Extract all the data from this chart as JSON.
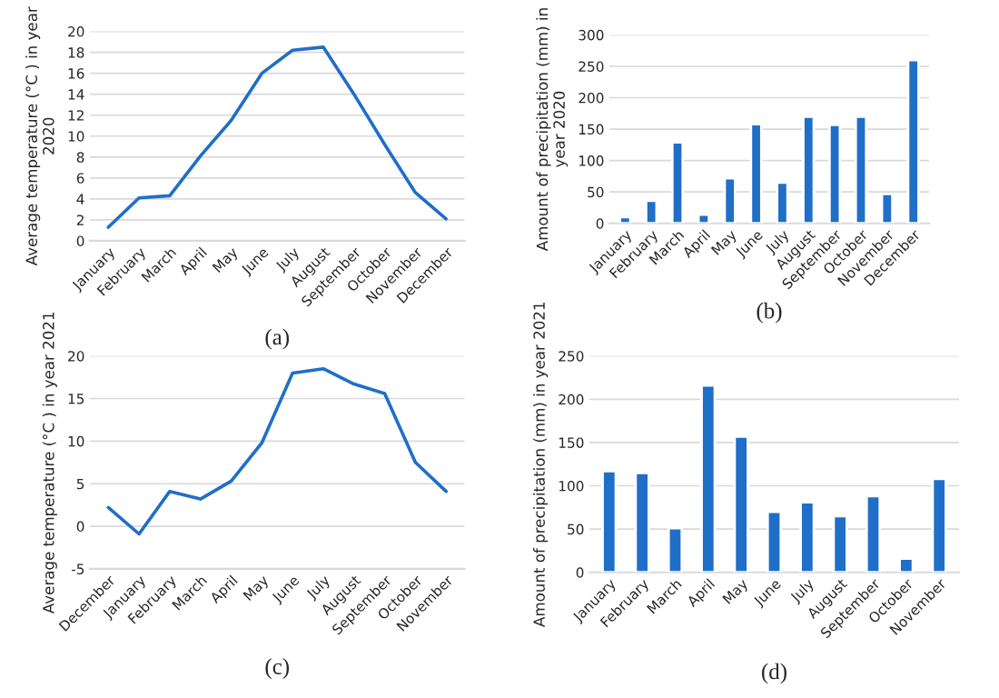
{
  "chart_data": [
    {
      "type": "line",
      "ylabel": "Average temperature (°C ) in year 2020",
      "categories": [
        "January",
        "February",
        "March",
        "April",
        "May",
        "June",
        "July",
        "August",
        "September",
        "October",
        "November",
        "December"
      ],
      "series": [
        {
          "color": "#1f6fc8",
          "values": [
            1.3,
            4.1,
            4.3,
            8.1,
            11.5,
            16.0,
            18.2,
            18.5,
            14.0,
            9.2,
            4.6,
            2.1
          ]
        }
      ],
      "ylim": [
        0,
        20
      ],
      "yticks": [
        0,
        2,
        4,
        6,
        8,
        10,
        12,
        14,
        16,
        18,
        20
      ],
      "grid": "y",
      "legend": false,
      "marker": "none",
      "line_style": "solid",
      "annotations": [
        "(a)"
      ]
    },
    {
      "type": "bar",
      "ylabel": "Amount of precipitation (mm) in year 2020",
      "categories": [
        "January",
        "February",
        "March",
        "April",
        "May",
        "June",
        "July",
        "August",
        "September",
        "October",
        "November",
        "December"
      ],
      "series": [
        {
          "color": "#1f6fc8",
          "values": [
            10,
            36,
            129,
            14,
            72,
            158,
            65,
            170,
            157,
            170,
            47,
            260
          ]
        }
      ],
      "ylim": [
        0,
        300
      ],
      "yticks": [
        0,
        50,
        100,
        150,
        200,
        250,
        300
      ],
      "grid": "y",
      "legend": false,
      "annotations": [
        "(b)"
      ]
    },
    {
      "type": "line",
      "ylabel": "Average temperature (°C ) in year 2021",
      "categories": [
        "December",
        "January",
        "February",
        "March",
        "April",
        "May",
        "June",
        "July",
        "August",
        "September",
        "October",
        "November"
      ],
      "series": [
        {
          "color": "#1f6fc8",
          "values": [
            2.2,
            -0.9,
            4.1,
            3.2,
            5.3,
            9.8,
            18.0,
            18.5,
            16.7,
            15.6,
            7.5,
            4.1
          ]
        }
      ],
      "ylim": [
        -5,
        20
      ],
      "yticks": [
        -5,
        0,
        5,
        10,
        15,
        20
      ],
      "grid": "y",
      "legend": false,
      "marker": "none",
      "line_style": "solid",
      "annotations": [
        "(c)"
      ]
    },
    {
      "type": "bar",
      "ylabel": "Amount of precipitation (mm) in year 2021",
      "categories": [
        "January",
        "February",
        "March",
        "April",
        "May",
        "June",
        "July",
        "August",
        "September",
        "October",
        "November"
      ],
      "series": [
        {
          "color": "#1f6fc8",
          "values": [
            117,
            115,
            51,
            216,
            157,
            70,
            81,
            65,
            88,
            16,
            108
          ]
        }
      ],
      "ylim": [
        0,
        250
      ],
      "yticks": [
        0,
        50,
        100,
        150,
        200,
        250
      ],
      "grid": "y",
      "legend": false,
      "annotations": [
        "(d)"
      ]
    }
  ]
}
